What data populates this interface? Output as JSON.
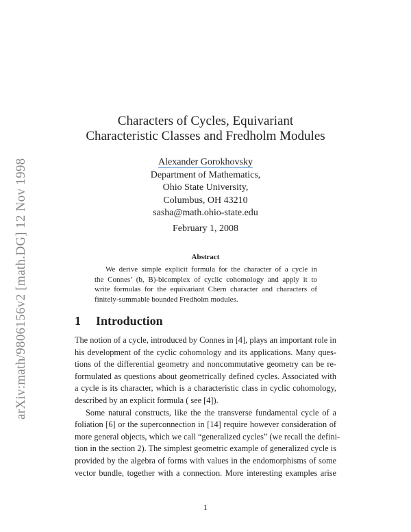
{
  "arxiv_id": "arXiv:math/9806156v2  [math.DG]  12 Nov 1998",
  "title_lines": [
    "Characters of Cycles, Equivariant",
    "Characteristic Classes and Fredholm Modules"
  ],
  "author": "Alexander Gorokhovsky",
  "affiliation": [
    "Department of Mathematics,",
    "Ohio State University,",
    "Columbus, OH 43210",
    "sasha@math.ohio-state.edu"
  ],
  "date": "February 1, 2008",
  "abstract": {
    "heading": "Abstract",
    "lines": [
      "We derive simple explicit formula for the character of a cycle in",
      "the Connes’ (b, B)-bicomplex of cyclic cohomology and apply it to",
      "write formulas for the equivariant Chern character and characters of",
      "finitely-summable bounded Fredholm modules."
    ]
  },
  "section": {
    "number": "1",
    "title": "Introduction"
  },
  "body_lines": [
    "The notion of a cycle, introduced by Connes in [4], plays an important role in",
    "his development of the cyclic cohomology and its applications. Many ques-",
    "tions of the differential geometry and noncommutative geometry can be re-",
    "formulated as questions about geometrically defined cycles. Associated with",
    "a cycle is its character, which is a characteristic class in cyclic cohomology,",
    "described by an explicit formula ( see [4]).",
    "Some natural constructs, like the the transverse fundamental cycle of a",
    "foliation [6] or the superconnection in [14] require however consideration of",
    "more general objects, which we call “generalized cycles” (we recall the defini-",
    "tion in the section 2). The simplest geometric example of generalized cycle is",
    "provided by the algebra of forms with values in the endomorphisms of some",
    "vector bundle, together with a connection. More interesting examples arise"
  ],
  "page_number": "1"
}
